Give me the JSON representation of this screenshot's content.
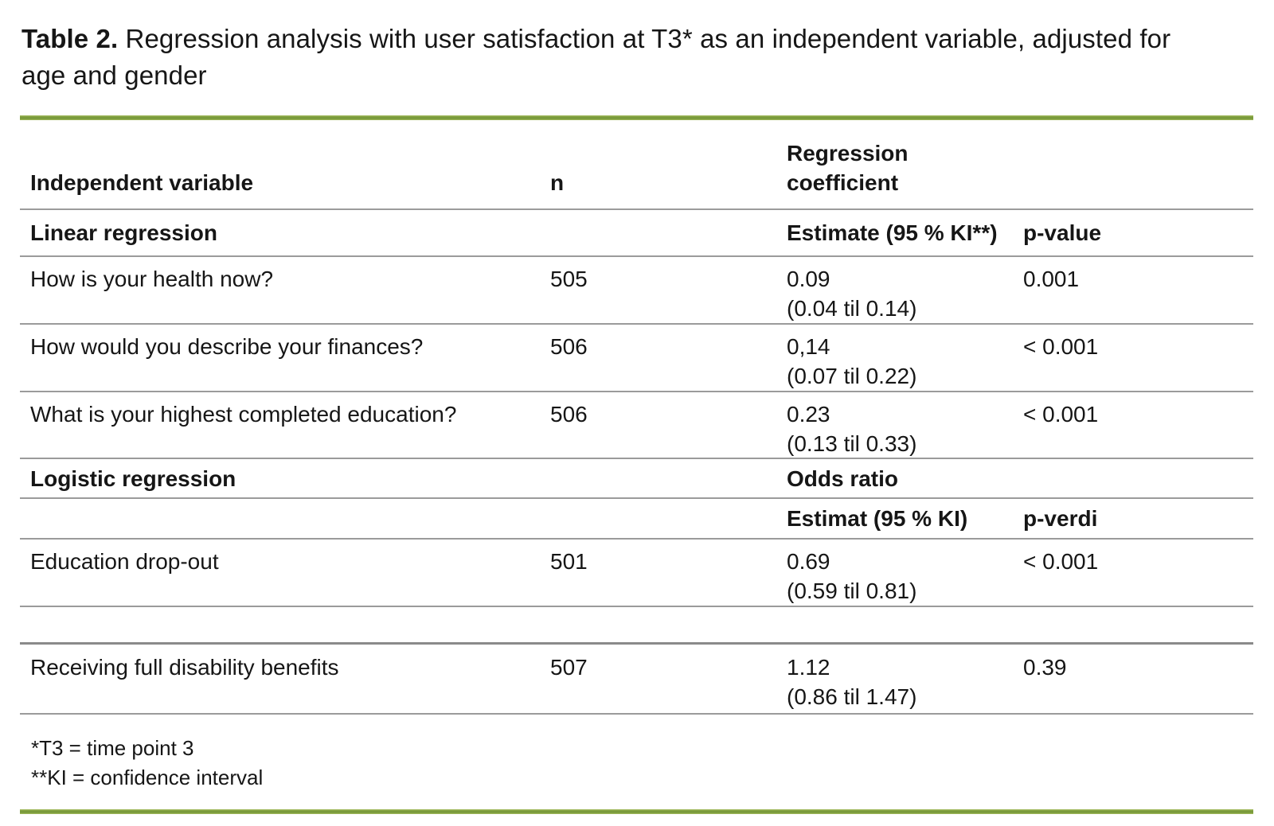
{
  "colors": {
    "accent_green": "#7a9a3b",
    "line_gray": "#9b9b9b",
    "text": "#161616"
  },
  "title": {
    "label": "Table 2.",
    "text": "Regression analysis with user satisfaction at T3* as an independent variable, adjusted for age and gender"
  },
  "table": {
    "columns": [
      "Independent variable",
      "n",
      "Regression coefficient"
    ],
    "rows": [
      {
        "label": "Linear regression",
        "est": "Estimate (95 % KI**)",
        "p": "p-value"
      },
      {
        "label": "How is your health now?",
        "n": "505",
        "est": "0.09",
        "ci": "(0.04 til 0.14)",
        "p": "0.001"
      },
      {
        "label": "How would you describe your finances?",
        "n": "506",
        "est": "0,14",
        "ci": "(0.07 til 0.22)",
        "p": "< 0.001"
      },
      {
        "label": "What is your highest completed education?",
        "n": "506",
        "est": "0.23",
        "ci": "(0.13 til 0.33)",
        "p": "< 0.001"
      },
      {
        "label": "Logistic regression",
        "est": "Odds ratio"
      },
      {
        "est": "Estimat (95 % KI)",
        "p": "p-verdi"
      },
      {
        "label": "Education drop-out",
        "n": "501",
        "est": "0.69",
        "ci": "(0.59 til 0.81)",
        "p": "< 0.001"
      },
      {},
      {
        "label": "Receiving full disability benefits",
        "n": "507",
        "est": "1.12",
        "ci": "(0.86 til 1.47)",
        "p": "0.39"
      }
    ]
  },
  "footnotes": [
    "*T3 = time point 3",
    "**KI = confidence interval"
  ]
}
